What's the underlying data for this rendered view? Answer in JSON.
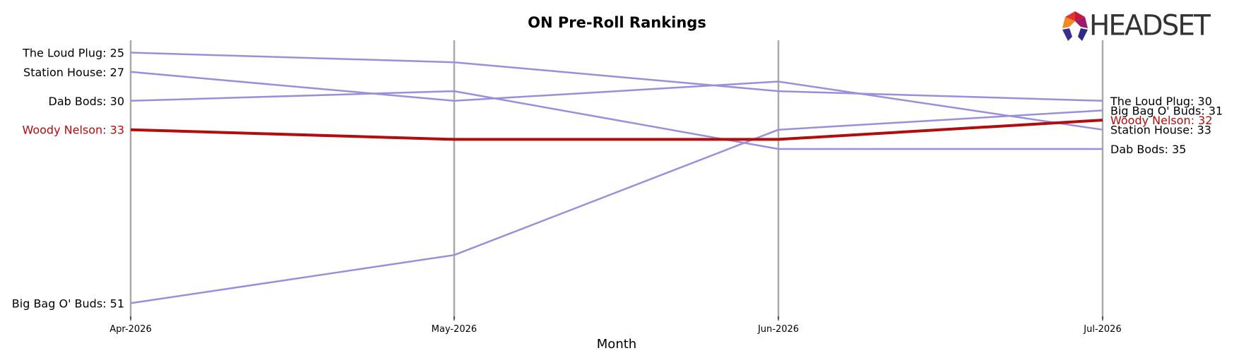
{
  "chart_data": {
    "type": "line",
    "title": "ON Pre-Roll Rankings",
    "xlabel": "Month",
    "ylabel": "",
    "x": [
      "Apr-2026",
      "May-2026",
      "Jun-2026",
      "Jul-2026"
    ],
    "y_inverted": true,
    "grid": "vertical lines at each month",
    "series": [
      {
        "name": "The Loud Plug",
        "values": [
          25,
          26,
          29,
          30
        ],
        "color": "#9b8fdc",
        "highlight": false
      },
      {
        "name": "Station House",
        "values": [
          27,
          30,
          28,
          33
        ],
        "color": "#9b8fdc",
        "highlight": false
      },
      {
        "name": "Dab Bods",
        "values": [
          30,
          29,
          35,
          35
        ],
        "color": "#9b8fdc",
        "highlight": false
      },
      {
        "name": "Woody Nelson",
        "values": [
          33,
          34,
          34,
          32
        ],
        "color": "#b30c0c",
        "highlight": true
      },
      {
        "name": "Big Bag O' Buds",
        "values": [
          51,
          46,
          33,
          31
        ],
        "color": "#9b8fdc",
        "highlight": false
      }
    ],
    "start_labels": [
      "The Loud Plug: 25",
      "Station House: 27",
      "Dab Bods: 30",
      "Woody Nelson: 33",
      "Big Bag O' Buds: 51"
    ],
    "end_labels": [
      "The Loud Plug: 30",
      "Big Bag O' Buds: 31",
      "Woody Nelson: 32",
      "Station House: 33",
      "Dab Bods: 35"
    ]
  },
  "logo": {
    "text": "HEADSET"
  }
}
